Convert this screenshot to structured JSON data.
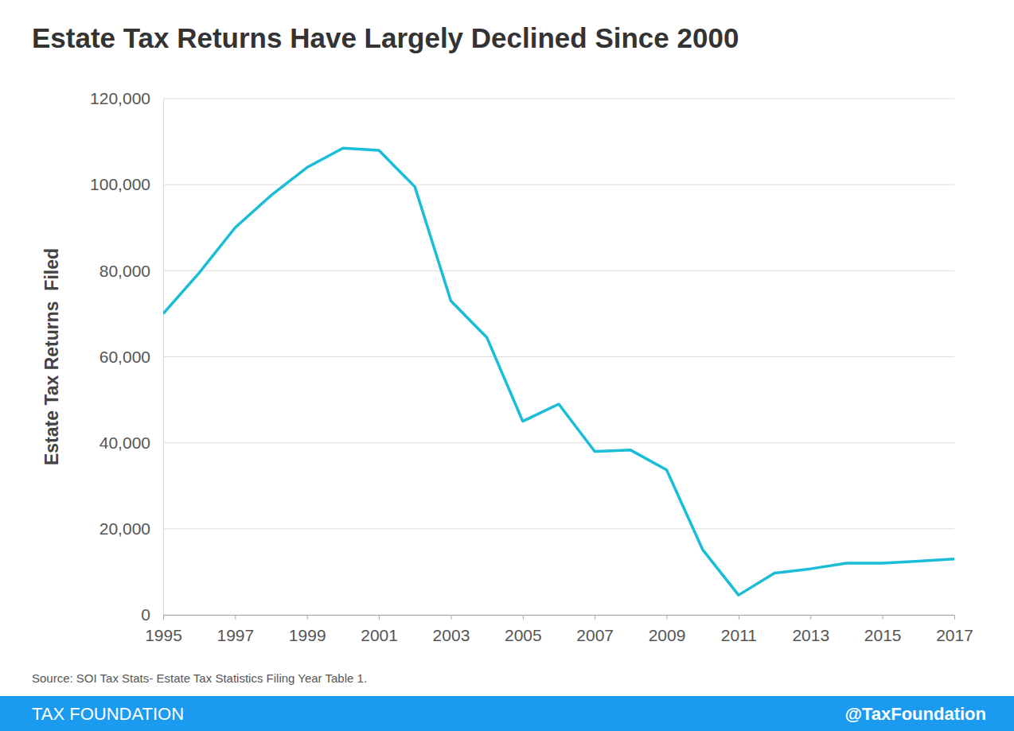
{
  "chart_data": {
    "type": "line",
    "title": "Estate Tax Returns Have Largely Declined Since 2000",
    "ylabel": "Estate Tax Returns  Filed",
    "source": "Source: SOI Tax Stats- Estate Tax Statistics Filing Year Table 1.",
    "footer": [
      "TAX FOUNDATION",
      "@TaxFoundation"
    ],
    "x": [
      1995,
      1996,
      1997,
      1998,
      1999,
      2000,
      2001,
      2002,
      2003,
      2004,
      2005,
      2006,
      2007,
      2008,
      2009,
      2010,
      2011,
      2012,
      2013,
      2014,
      2015,
      2016,
      2017
    ],
    "values": [
      70000,
      79500,
      90000,
      97500,
      104000,
      108500,
      108000,
      99500,
      73000,
      64500,
      45000,
      49000,
      38000,
      38300,
      33700,
      15200,
      4600,
      9700,
      10700,
      12000,
      12000,
      12500,
      13000
    ],
    "color": "#19bdd6",
    "xlim": [
      1995,
      2017
    ],
    "xticks": [
      1995,
      1997,
      1999,
      2001,
      2003,
      2005,
      2007,
      2009,
      2011,
      2013,
      2015,
      2017
    ],
    "ylim": [
      0,
      120000
    ],
    "yticks": [
      0,
      {
        "value": 20000,
        "label": "20,000"
      },
      {
        "value": 40000,
        "label": "40,000"
      },
      {
        "value": 60000,
        "label": "60,000"
      },
      {
        "value": 80000,
        "label": "80,000"
      },
      {
        "value": 100000,
        "label": "100,000"
      },
      {
        "value": 120000,
        "label": "120,000"
      }
    ],
    "grid": true
  }
}
